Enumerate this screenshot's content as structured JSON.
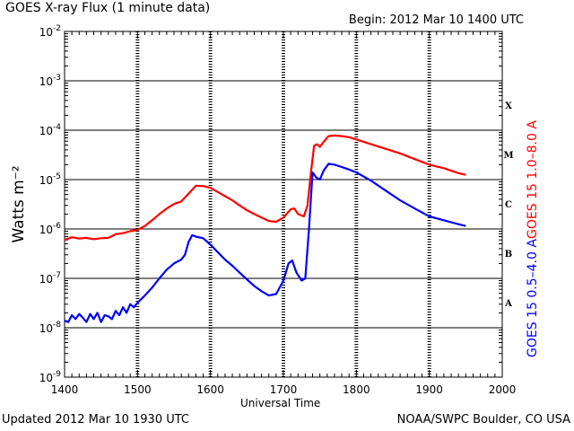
{
  "header": {
    "title": "GOES X-ray Flux (1 minute data)",
    "begin": "Begin: 2012 Mar 10 1400 UTC"
  },
  "footer": {
    "updated": "Updated 2012 Mar 10 1930 UTC",
    "credit": "NOAA/SWPC Boulder, CO USA"
  },
  "colors": {
    "long": "#ff0000",
    "short": "#0000ff",
    "axis": "#000000"
  },
  "chart_data": {
    "type": "line",
    "title": "GOES X-ray Flux (1 minute data)",
    "xlabel": "Universal Time",
    "ylabel": "Watts m⁻²",
    "xlim": [
      1400,
      2000
    ],
    "ylim": [
      1e-09,
      0.01
    ],
    "yscale": "log",
    "x_ticks": [
      "1400",
      "1500",
      "1600",
      "1700",
      "1800",
      "1900",
      "2000"
    ],
    "x_tick_values": [
      1400,
      1500,
      1600,
      1700,
      1800,
      1900,
      2000
    ],
    "y_ticks": [
      {
        "base": "10",
        "exp": "-2",
        "value": 0.01
      },
      {
        "base": "10",
        "exp": "-3",
        "value": 0.001
      },
      {
        "base": "10",
        "exp": "-4",
        "value": 0.0001
      },
      {
        "base": "10",
        "exp": "-5",
        "value": 1e-05
      },
      {
        "base": "10",
        "exp": "-6",
        "value": 1e-06
      },
      {
        "base": "10",
        "exp": "-7",
        "value": 1e-07
      },
      {
        "base": "10",
        "exp": "-8",
        "value": 1e-08
      },
      {
        "base": "10",
        "exp": "-9",
        "value": 1e-09
      }
    ],
    "flare_classes": [
      {
        "label": "X",
        "value": 0.00032
      },
      {
        "label": "M",
        "value": 3.2e-05
      },
      {
        "label": "C",
        "value": 3.2e-06
      },
      {
        "label": "B",
        "value": 3.2e-07
      },
      {
        "label": "A",
        "value": 3.2e-08
      }
    ],
    "grid": true,
    "series": [
      {
        "name": "GOES 15 1.0–8.0 A",
        "color": "#ff0000",
        "points": [
          [
            1400,
            6e-07
          ],
          [
            1410,
            6.8e-07
          ],
          [
            1420,
            6.4e-07
          ],
          [
            1430,
            6.6e-07
          ],
          [
            1440,
            6.2e-07
          ],
          [
            1450,
            6.5e-07
          ],
          [
            1460,
            6.6e-07
          ],
          [
            1470,
            7.8e-07
          ],
          [
            1480,
            8.2e-07
          ],
          [
            1490,
            9e-07
          ],
          [
            1500,
            9.6e-07
          ],
          [
            1510,
            1.15e-06
          ],
          [
            1520,
            1.5e-06
          ],
          [
            1530,
            2e-06
          ],
          [
            1540,
            2.6e-06
          ],
          [
            1550,
            3.2e-06
          ],
          [
            1560,
            3.6e-06
          ],
          [
            1570,
            5.2e-06
          ],
          [
            1580,
            7.5e-06
          ],
          [
            1590,
            7.4e-06
          ],
          [
            1600,
            6.8e-06
          ],
          [
            1610,
            5.6e-06
          ],
          [
            1620,
            4.6e-06
          ],
          [
            1630,
            3.8e-06
          ],
          [
            1640,
            3e-06
          ],
          [
            1650,
            2.4e-06
          ],
          [
            1660,
            2e-06
          ],
          [
            1670,
            1.7e-06
          ],
          [
            1680,
            1.45e-06
          ],
          [
            1690,
            1.4e-06
          ],
          [
            1700,
            1.7e-06
          ],
          [
            1710,
            2.5e-06
          ],
          [
            1715,
            2.6e-06
          ],
          [
            1720,
            2e-06
          ],
          [
            1728,
            1.8e-06
          ],
          [
            1733,
            3e-06
          ],
          [
            1738,
            1.5e-05
          ],
          [
            1742,
            4.8e-05
          ],
          [
            1746,
            5.2e-05
          ],
          [
            1750,
            4.6e-05
          ],
          [
            1756,
            6e-05
          ],
          [
            1762,
            7.6e-05
          ],
          [
            1770,
            7.8e-05
          ],
          [
            1780,
            7.6e-05
          ],
          [
            1790,
            7.2e-05
          ],
          [
            1800,
            6.5e-05
          ],
          [
            1820,
            5.2e-05
          ],
          [
            1840,
            4.2e-05
          ],
          [
            1860,
            3.4e-05
          ],
          [
            1880,
            2.6e-05
          ],
          [
            1900,
            2e-05
          ],
          [
            1920,
            1.7e-05
          ],
          [
            1940,
            1.35e-05
          ],
          [
            1950,
            1.25e-05
          ]
        ]
      },
      {
        "name": "GOES 15 0.5–4.0 A",
        "color": "#0000ff",
        "points": [
          [
            1400,
            1.4e-08
          ],
          [
            1405,
            1.3e-08
          ],
          [
            1410,
            1.8e-08
          ],
          [
            1415,
            1.5e-08
          ],
          [
            1420,
            1.9e-08
          ],
          [
            1425,
            1.6e-08
          ],
          [
            1430,
            1.3e-08
          ],
          [
            1435,
            1.9e-08
          ],
          [
            1440,
            1.5e-08
          ],
          [
            1445,
            2e-08
          ],
          [
            1450,
            1.3e-08
          ],
          [
            1455,
            1.8e-08
          ],
          [
            1460,
            1.7e-08
          ],
          [
            1465,
            1.5e-08
          ],
          [
            1470,
            2.2e-08
          ],
          [
            1475,
            1.8e-08
          ],
          [
            1480,
            2.6e-08
          ],
          [
            1485,
            2e-08
          ],
          [
            1490,
            3e-08
          ],
          [
            1495,
            2.6e-08
          ],
          [
            1500,
            3.2e-08
          ],
          [
            1510,
            4.5e-08
          ],
          [
            1520,
            6.5e-08
          ],
          [
            1530,
            1e-07
          ],
          [
            1540,
            1.5e-07
          ],
          [
            1550,
            2e-07
          ],
          [
            1560,
            2.4e-07
          ],
          [
            1565,
            3e-07
          ],
          [
            1570,
            5.5e-07
          ],
          [
            1575,
            7.5e-07
          ],
          [
            1580,
            7e-07
          ],
          [
            1590,
            6.5e-07
          ],
          [
            1600,
            4.8e-07
          ],
          [
            1610,
            3.4e-07
          ],
          [
            1620,
            2.4e-07
          ],
          [
            1630,
            1.8e-07
          ],
          [
            1640,
            1.3e-07
          ],
          [
            1650,
            9.5e-08
          ],
          [
            1660,
            7e-08
          ],
          [
            1670,
            5.5e-08
          ],
          [
            1680,
            4.5e-08
          ],
          [
            1690,
            4.8e-08
          ],
          [
            1700,
            9e-08
          ],
          [
            1707,
            2e-07
          ],
          [
            1712,
            2.3e-07
          ],
          [
            1718,
            1.3e-07
          ],
          [
            1725,
            9e-08
          ],
          [
            1730,
            1e-07
          ],
          [
            1735,
            1e-06
          ],
          [
            1740,
            1.4e-05
          ],
          [
            1745,
            1.1e-05
          ],
          [
            1750,
            1e-05
          ],
          [
            1755,
            1.5e-05
          ],
          [
            1762,
            2.1e-05
          ],
          [
            1770,
            2e-05
          ],
          [
            1780,
            1.8e-05
          ],
          [
            1790,
            1.6e-05
          ],
          [
            1800,
            1.4e-05
          ],
          [
            1820,
            9.5e-06
          ],
          [
            1840,
            6e-06
          ],
          [
            1860,
            3.8e-06
          ],
          [
            1880,
            2.6e-06
          ],
          [
            1900,
            1.8e-06
          ],
          [
            1920,
            1.5e-06
          ],
          [
            1940,
            1.25e-06
          ],
          [
            1950,
            1.15e-06
          ]
        ]
      }
    ]
  }
}
